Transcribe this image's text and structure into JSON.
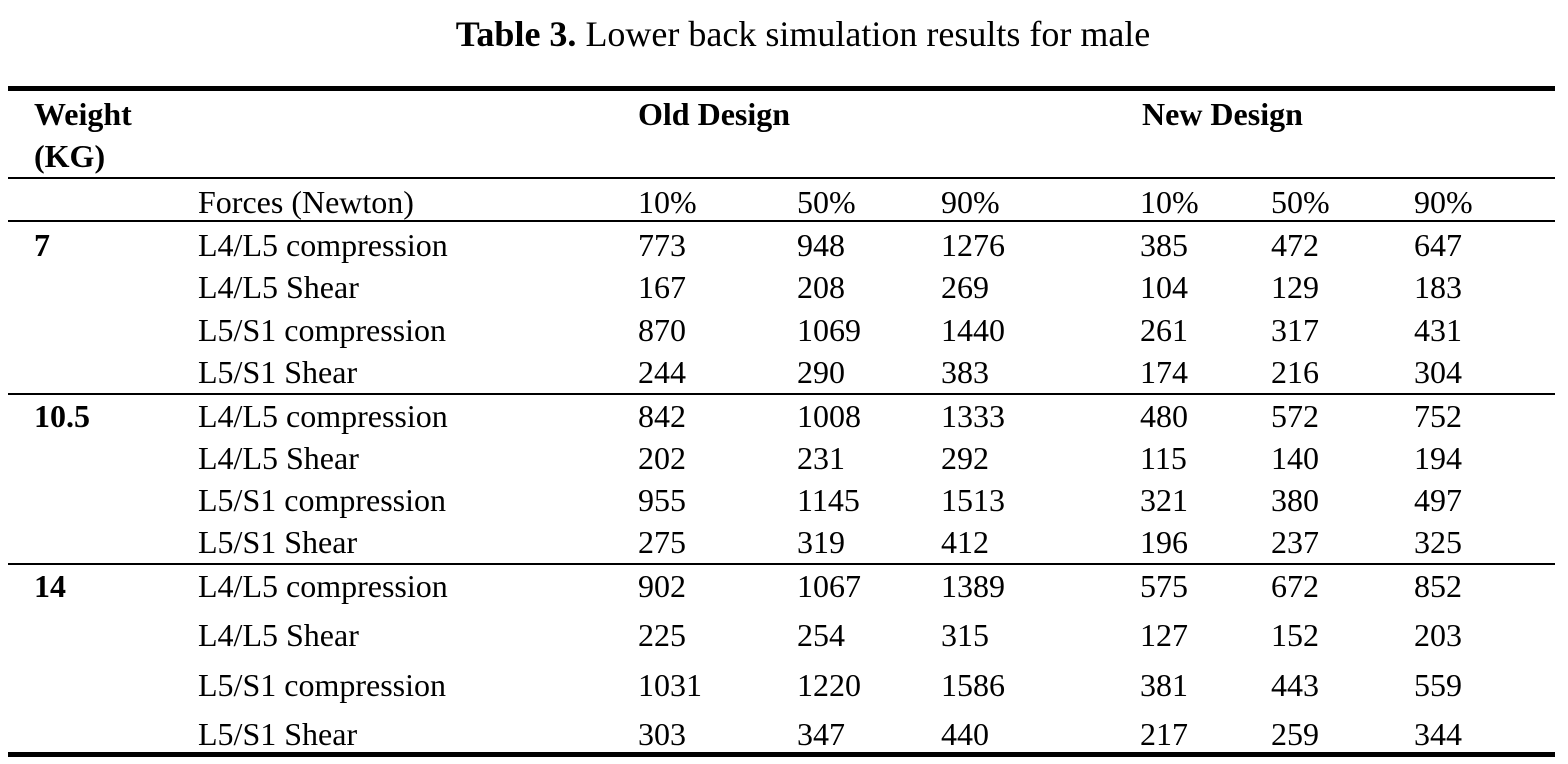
{
  "caption": {
    "label": "Table 3.",
    "text": "Lower back simulation results for male"
  },
  "header": {
    "weight_line1": "Weight",
    "weight_line2": "(KG)",
    "old_design": "Old Design",
    "new_design": "New Design"
  },
  "subheader": {
    "forces": "Forces (Newton)",
    "percentiles": [
      "10%",
      "50%",
      "90%",
      "10%",
      "50%",
      "90%"
    ]
  },
  "groups": [
    {
      "weight": "7",
      "rows": [
        {
          "force": "L4/L5 compression",
          "values": [
            "773",
            "948",
            "1276",
            "385",
            "472",
            "647"
          ]
        },
        {
          "force": "L4/L5 Shear",
          "values": [
            "167",
            "208",
            "269",
            "104",
            "129",
            "183"
          ]
        },
        {
          "force": "L5/S1 compression",
          "values": [
            "870",
            "1069",
            "1440",
            "261",
            "317",
            "431"
          ]
        },
        {
          "force": "L5/S1 Shear",
          "values": [
            "244",
            "290",
            "383",
            "174",
            "216",
            "304"
          ]
        }
      ]
    },
    {
      "weight": "10.5",
      "rows": [
        {
          "force": "L4/L5 compression",
          "values": [
            "842",
            "1008",
            "1333",
            "480",
            "572",
            "752"
          ]
        },
        {
          "force": "L4/L5 Shear",
          "values": [
            "202",
            "231",
            "292",
            "115",
            "140",
            "194"
          ]
        },
        {
          "force": "L5/S1 compression",
          "values": [
            "955",
            "1145",
            "1513",
            "321",
            "380",
            "497"
          ]
        },
        {
          "force": "L5/S1 Shear",
          "values": [
            "275",
            "319",
            "412",
            "196",
            "237",
            "325"
          ]
        }
      ]
    },
    {
      "weight": "14",
      "rows": [
        {
          "force": "L4/L5 compression",
          "values": [
            "902",
            "1067",
            "1389",
            "575",
            "672",
            "852"
          ]
        },
        {
          "force": "L4/L5 Shear",
          "values": [
            "225",
            "254",
            "315",
            "127",
            "152",
            "203"
          ]
        },
        {
          "force": "L5/S1 compression",
          "values": [
            "1031",
            "1220",
            "1586",
            "381",
            "443",
            "559"
          ]
        },
        {
          "force": "L5/S1 Shear",
          "values": [
            "303",
            "347",
            "440",
            "217",
            "259",
            "344"
          ]
        }
      ]
    }
  ]
}
